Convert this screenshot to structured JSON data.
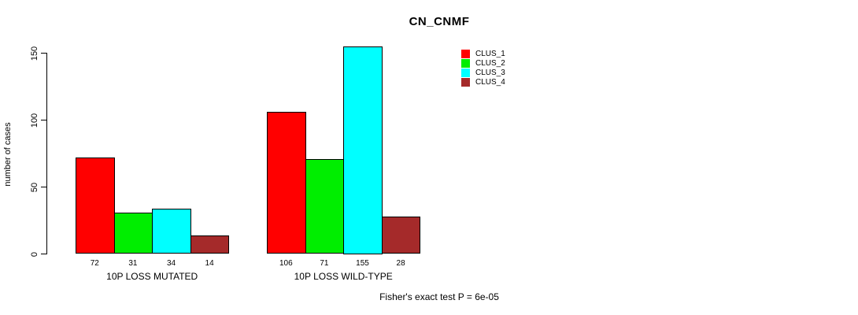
{
  "chart_data": {
    "type": "bar",
    "title": "CN_CNMF",
    "ylabel": "number of cases",
    "ylim": [
      0,
      150
    ],
    "yticks": [
      0,
      50,
      100,
      150
    ],
    "categories": [
      "10P LOSS MUTATED",
      "10P LOSS WILD-TYPE"
    ],
    "series": [
      {
        "name": "CLUS_1",
        "color": "#ff0000",
        "values": [
          72,
          106
        ]
      },
      {
        "name": "CLUS_2",
        "color": "#00ee00",
        "values": [
          31,
          71
        ]
      },
      {
        "name": "CLUS_3",
        "color": "#00ffff",
        "values": [
          34,
          155
        ]
      },
      {
        "name": "CLUS_4",
        "color": "#a52a2a",
        "values": [
          14,
          28
        ]
      }
    ],
    "bar_value_labels": [
      [
        "72",
        "31",
        "34",
        "14"
      ],
      [
        "106",
        "71",
        "155",
        "28"
      ]
    ],
    "legend": [
      {
        "label": "CLUS_1",
        "color": "#ff0000"
      },
      {
        "label": "CLUS_2",
        "color": "#00ee00"
      },
      {
        "label": "CLUS_3",
        "color": "#00ffff"
      },
      {
        "label": "CLUS_4",
        "color": "#a52a2a"
      }
    ],
    "legend_position": "top-right",
    "footnote": "Fisher's exact test P = 6e-05",
    "grid": false,
    "background_color": "#ffffff",
    "axis_color": "#000000",
    "text_color": "#000000"
  }
}
